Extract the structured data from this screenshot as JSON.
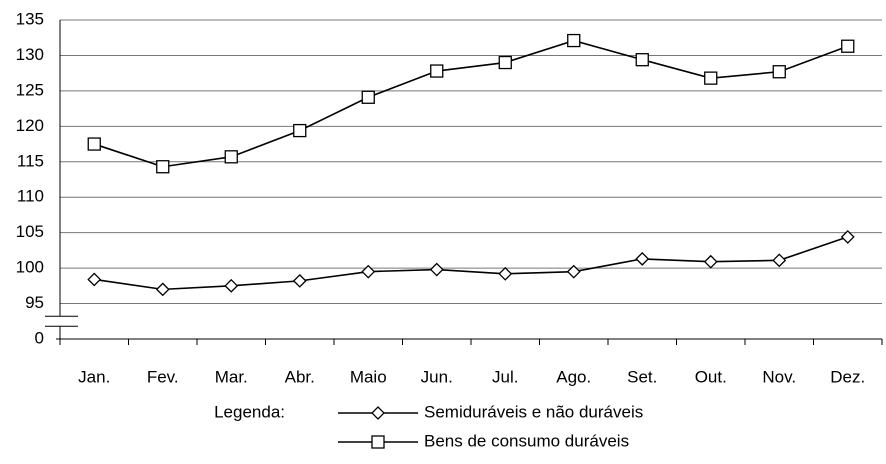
{
  "chart_data": {
    "type": "line",
    "categories": [
      "Jan.",
      "Fev.",
      "Mar.",
      "Abr.",
      "Maio",
      "Jun.",
      "Jul.",
      "Ago.",
      "Set.",
      "Out.",
      "Nov.",
      "Dez."
    ],
    "series": [
      {
        "name": "Semiduráveis e não duráveis",
        "color": "#000000",
        "marker": "diamond",
        "values": [
          98.4,
          97.0,
          97.5,
          98.2,
          99.5,
          99.8,
          99.2,
          99.5,
          101.3,
          100.9,
          101.1,
          104.4
        ]
      },
      {
        "name": "Bens de consumo duráveis",
        "color": "#000000",
        "marker": "square",
        "values": [
          117.5,
          114.3,
          115.7,
          119.4,
          124.1,
          127.8,
          129.0,
          132.1,
          129.4,
          126.8,
          127.7,
          131.3
        ]
      }
    ],
    "ylim": [
      0,
      135
    ],
    "yticks": [
      0,
      95,
      100,
      105,
      110,
      115,
      120,
      125,
      130,
      135
    ],
    "axis_break": true,
    "grid": true,
    "legend_title": "Legenda:",
    "legend_position": "bottom"
  }
}
